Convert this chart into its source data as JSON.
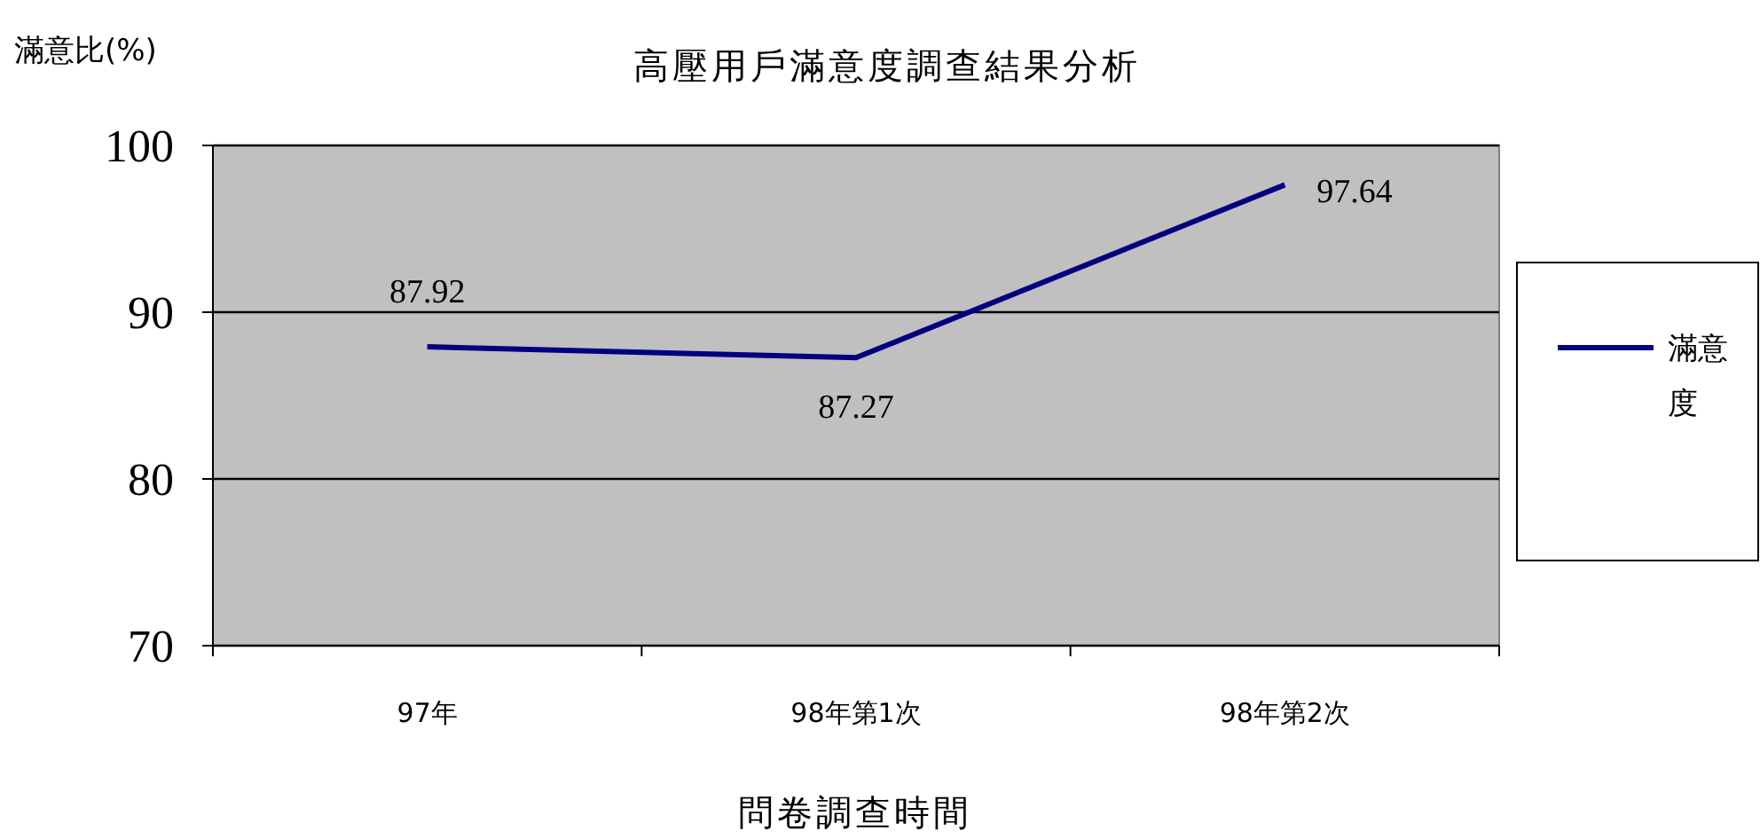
{
  "chart_data": {
    "type": "line",
    "title": "高壓用戶滿意度調查結果分析",
    "ylabel": "滿意比(%)",
    "xlabel": "問卷調查時間",
    "categories": [
      "97年",
      "98年第1次",
      "98年第2次"
    ],
    "series": [
      {
        "name": "滿意度",
        "color": "#000080",
        "values": [
          87.92,
          87.27,
          97.64
        ]
      }
    ],
    "ylim": [
      70,
      100
    ],
    "yticks": [
      70,
      80,
      90,
      100
    ],
    "grid": "y",
    "legend": "right",
    "data_labels": true,
    "marker": "none",
    "line_style": "solid"
  }
}
